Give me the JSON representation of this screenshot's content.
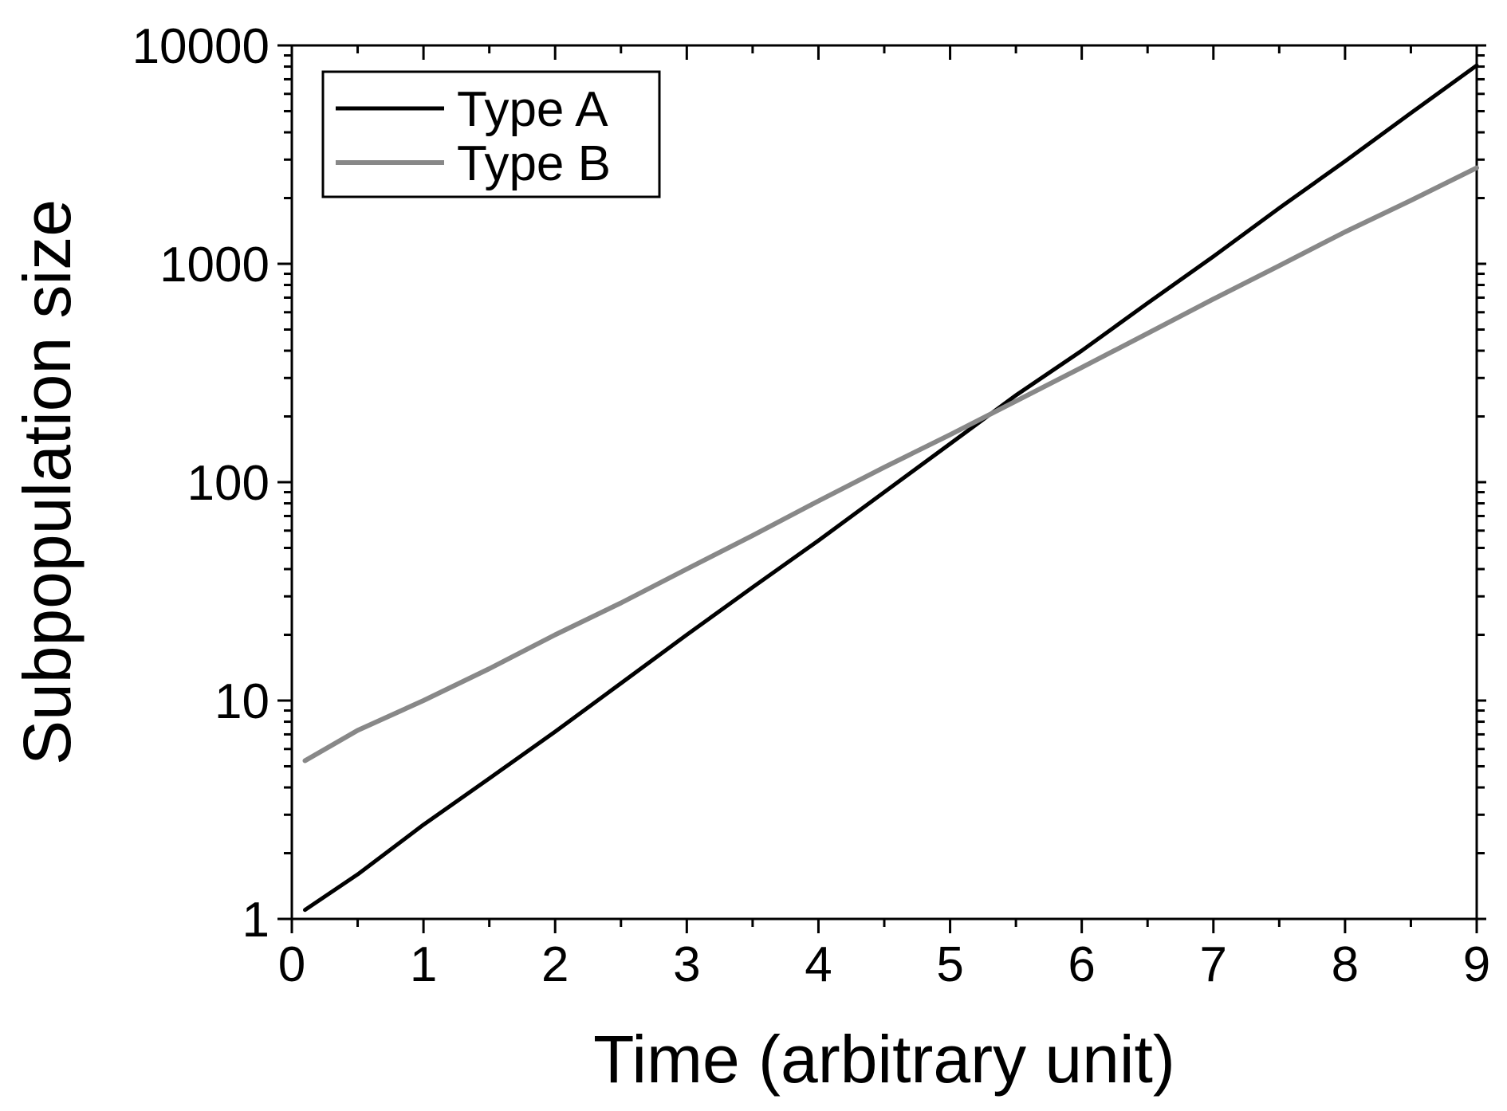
{
  "chart_data": {
    "type": "line",
    "title": "",
    "xlabel": "Time (arbitrary unit)",
    "ylabel": "Subpopulation size",
    "xlim": [
      0,
      9
    ],
    "ylim": [
      1,
      10000
    ],
    "yscale": "log",
    "grid": false,
    "legend_position": "top-left",
    "x_ticks": [
      0,
      1,
      2,
      3,
      4,
      5,
      6,
      7,
      8,
      9
    ],
    "x_tick_labels": [
      "0",
      "1",
      "2",
      "3",
      "4",
      "5",
      "6",
      "7",
      "8",
      "9"
    ],
    "y_ticks": [
      1,
      10,
      100,
      1000,
      10000
    ],
    "y_tick_labels": [
      "1",
      "10",
      "100",
      "1000",
      "10000"
    ],
    "x": [
      0.1,
      0.5,
      1,
      1.5,
      2,
      2.5,
      3,
      3.5,
      4,
      4.5,
      5,
      5.5,
      6,
      6.5,
      7,
      7.5,
      8,
      8.5,
      9
    ],
    "series": [
      {
        "name": "Type A",
        "color": "#000000",
        "values": [
          1.1,
          1.6,
          2.7,
          4.4,
          7.2,
          12,
          20,
          33,
          54,
          90,
          150,
          250,
          400,
          660,
          1080,
          1800,
          2950,
          4900,
          8100
        ]
      },
      {
        "name": "Type B",
        "color": "#888888",
        "values": [
          5.3,
          7.3,
          10,
          14,
          20,
          28,
          40,
          57,
          82,
          117,
          165,
          235,
          335,
          480,
          690,
          980,
          1400,
          1950,
          2750
        ]
      }
    ]
  }
}
